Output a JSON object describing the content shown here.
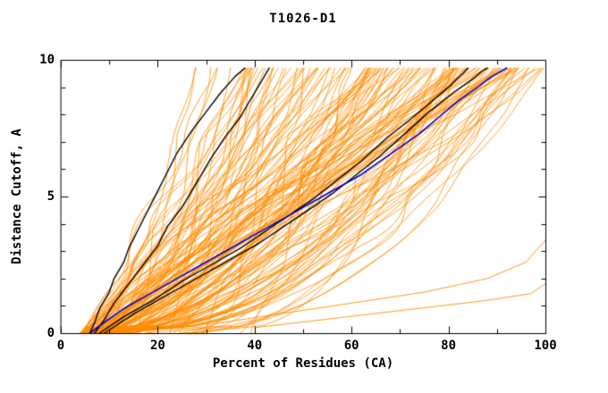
{
  "chart_data": {
    "type": "line",
    "title": "T1026-D1",
    "xlabel": "Percent of Residues (CA)",
    "ylabel": "Distance Cutoff, A",
    "xlim": [
      0,
      100
    ],
    "ylim": [
      0,
      10
    ],
    "x_ticks": [
      0,
      20,
      40,
      60,
      80,
      100
    ],
    "y_ticks": [
      0,
      5,
      10
    ],
    "x_minor_step": 10,
    "y_minor_step": 1,
    "grid": false,
    "legend": "none",
    "colors": {
      "ensemble": "#ff8c00",
      "reference": "#000000",
      "highlight": "#0000cd",
      "frame": "#000000",
      "background": "#ffffff",
      "text": "#000000"
    },
    "series": [
      {
        "name": "reference-model-1",
        "color": "reference",
        "width": 1.4,
        "points": [
          [
            6,
            0
          ],
          [
            7,
            0.4
          ],
          [
            8,
            0.9
          ],
          [
            10,
            1.5
          ],
          [
            11,
            2.0
          ],
          [
            13,
            2.6
          ],
          [
            14,
            3.1
          ],
          [
            16,
            3.8
          ],
          [
            18,
            4.5
          ],
          [
            20,
            5.2
          ],
          [
            22,
            5.9
          ],
          [
            24,
            6.6
          ],
          [
            27,
            7.4
          ],
          [
            30,
            8.1
          ],
          [
            33,
            8.8
          ],
          [
            36,
            9.4
          ],
          [
            38,
            9.7
          ]
        ]
      },
      {
        "name": "reference-model-2",
        "color": "reference",
        "width": 1.4,
        "points": [
          [
            7,
            0
          ],
          [
            9,
            0.5
          ],
          [
            11,
            1.1
          ],
          [
            14,
            1.8
          ],
          [
            17,
            2.5
          ],
          [
            20,
            3.2
          ],
          [
            22,
            3.9
          ],
          [
            25,
            4.6
          ],
          [
            27,
            5.2
          ],
          [
            29,
            5.8
          ],
          [
            31,
            6.4
          ],
          [
            34,
            7.2
          ],
          [
            37,
            7.9
          ],
          [
            39,
            8.5
          ],
          [
            41,
            9.1
          ],
          [
            43,
            9.7
          ]
        ]
      },
      {
        "name": "reference-model-3",
        "color": "reference",
        "width": 1.4,
        "points": [
          [
            8,
            0
          ],
          [
            13,
            0.6
          ],
          [
            19,
            1.2
          ],
          [
            25,
            1.9
          ],
          [
            31,
            2.5
          ],
          [
            37,
            3.1
          ],
          [
            42,
            3.7
          ],
          [
            47,
            4.3
          ],
          [
            52,
            4.9
          ],
          [
            57,
            5.6
          ],
          [
            62,
            6.3
          ],
          [
            67,
            7.1
          ],
          [
            72,
            7.8
          ],
          [
            76,
            8.4
          ],
          [
            80,
            9.0
          ],
          [
            83,
            9.5
          ],
          [
            84,
            9.7
          ]
        ]
      },
      {
        "name": "reference-model-4",
        "color": "reference",
        "width": 1.4,
        "points": [
          [
            9,
            0
          ],
          [
            15,
            0.7
          ],
          [
            22,
            1.4
          ],
          [
            29,
            2.1
          ],
          [
            35,
            2.7
          ],
          [
            41,
            3.3
          ],
          [
            46,
            3.9
          ],
          [
            51,
            4.5
          ],
          [
            56,
            5.1
          ],
          [
            61,
            5.8
          ],
          [
            66,
            6.5
          ],
          [
            71,
            7.3
          ],
          [
            76,
            8.1
          ],
          [
            81,
            8.8
          ],
          [
            85,
            9.3
          ],
          [
            87,
            9.6
          ],
          [
            88,
            9.7
          ]
        ]
      },
      {
        "name": "highlighted-model",
        "color": "highlight",
        "width": 1.6,
        "points": [
          [
            6,
            0
          ],
          [
            9,
            0.4
          ],
          [
            13,
            0.9
          ],
          [
            18,
            1.4
          ],
          [
            23,
            1.9
          ],
          [
            28,
            2.4
          ],
          [
            33,
            2.9
          ],
          [
            38,
            3.4
          ],
          [
            43,
            3.9
          ],
          [
            48,
            4.4
          ],
          [
            53,
            4.9
          ],
          [
            57,
            5.3
          ],
          [
            62,
            5.8
          ],
          [
            66,
            6.3
          ],
          [
            70,
            6.8
          ],
          [
            74,
            7.3
          ],
          [
            78,
            7.9
          ],
          [
            82,
            8.5
          ],
          [
            86,
            9.0
          ],
          [
            89,
            9.4
          ],
          [
            91,
            9.6
          ],
          [
            92,
            9.7
          ]
        ]
      }
    ],
    "ensemble": {
      "name": "model-ensemble",
      "color": "ensemble",
      "count": 150,
      "seed": 1337,
      "y_max": 9.7,
      "x_start_range": [
        4,
        14
      ],
      "x_top_range": [
        25,
        100
      ],
      "shape_exponent_range": [
        0.32,
        1.25
      ],
      "line_width": 0.8
    },
    "outlier_series": [
      {
        "name": "outlier-model-1",
        "color": "ensemble",
        "width": 0.9,
        "points": [
          [
            40,
            0.2
          ],
          [
            52,
            0.45
          ],
          [
            64,
            0.7
          ],
          [
            76,
            0.95
          ],
          [
            88,
            1.2
          ],
          [
            97,
            1.45
          ],
          [
            100,
            1.8
          ]
        ]
      },
      {
        "name": "outlier-model-2",
        "color": "ensemble",
        "width": 0.9,
        "points": [
          [
            30,
            0.3
          ],
          [
            45,
            0.7
          ],
          [
            60,
            1.1
          ],
          [
            75,
            1.5
          ],
          [
            88,
            2.0
          ],
          [
            96,
            2.6
          ],
          [
            100,
            3.4
          ]
        ]
      }
    ]
  }
}
